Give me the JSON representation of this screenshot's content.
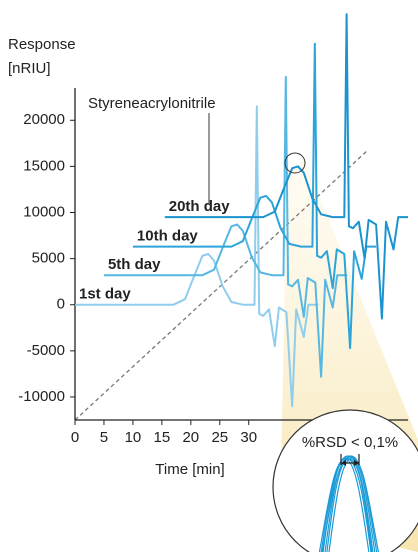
{
  "chart_data": {
    "type": "line",
    "y_label_lines": [
      "Response",
      "[nRIU]"
    ],
    "x_label": "Time [min]",
    "annotation": "Styreneacrylonitrile",
    "inset_label": "%RSD < 0,1%",
    "xlim": [
      0,
      57.5
    ],
    "ylim": [
      -12500,
      23500
    ],
    "xticks": [
      0,
      5,
      10,
      15,
      20,
      25,
      30
    ],
    "yticks": [
      -10000,
      -5000,
      0,
      5000,
      10000,
      15000,
      20000
    ],
    "grid": false,
    "series": [
      {
        "name": "1st day",
        "color": "#8fcdec",
        "x": [
          0,
          17,
          19,
          20.5,
          22,
          23,
          24,
          25.5,
          27,
          29,
          31,
          31.4,
          31.8,
          32.5,
          33.5,
          34.5,
          35.2,
          36.5,
          37.5,
          38.2,
          39.5,
          40.3,
          42
        ],
        "values": [
          0,
          0,
          600,
          3000,
          5300,
          5500,
          4800,
          2000,
          300,
          0,
          0,
          21500,
          -1000,
          -1200,
          -500,
          -4500,
          -300,
          -800,
          -11000,
          -500,
          -3500,
          0,
          0
        ]
      },
      {
        "name": "5th day",
        "color": "#55b7e2",
        "x": [
          5,
          22,
          24,
          25.5,
          27,
          28,
          29,
          30.5,
          32,
          34,
          36,
          36.4,
          36.8,
          37.5,
          38.5,
          39.5,
          40.2,
          41.5,
          42.5,
          43.2,
          44.5,
          45.3,
          47
        ],
        "values": [
          3200,
          3200,
          3800,
          6200,
          8500,
          8700,
          8000,
          5200,
          3500,
          3200,
          3200,
          24700,
          2200,
          2000,
          2700,
          -1300,
          2900,
          2400,
          -7800,
          2700,
          -300,
          3200,
          3200
        ]
      },
      {
        "name": "10th day",
        "color": "#2ca4da",
        "x": [
          10,
          27,
          29,
          30.5,
          32,
          33,
          34,
          35.5,
          37,
          39,
          41,
          41.4,
          41.8,
          42.5,
          43.5,
          44.5,
          45.2,
          46.5,
          47.5,
          48.2,
          49.5,
          50.3,
          52
        ],
        "values": [
          6300,
          6300,
          6900,
          9300,
          11600,
          11800,
          11100,
          8300,
          6600,
          6300,
          6300,
          28300,
          5300,
          5100,
          5800,
          1800,
          6000,
          5500,
          -4700,
          5800,
          2800,
          6300,
          6300
        ]
      },
      {
        "name": "20th day",
        "color": "#1a93cf",
        "x": [
          15.5,
          32.5,
          34.5,
          36,
          37.5,
          38.5,
          39.5,
          41,
          42.5,
          44.5,
          46.5,
          46.9,
          47.3,
          48,
          49,
          50,
          50.7,
          52,
          53,
          53.7,
          55,
          55.8,
          57.5
        ],
        "values": [
          9500,
          9500,
          10100,
          12500,
          14800,
          15000,
          14300,
          11500,
          9800,
          9500,
          9500,
          31500,
          8500,
          8300,
          9000,
          5000,
          9200,
          8700,
          -1500,
          9000,
          6000,
          9500,
          9500
        ]
      }
    ]
  }
}
